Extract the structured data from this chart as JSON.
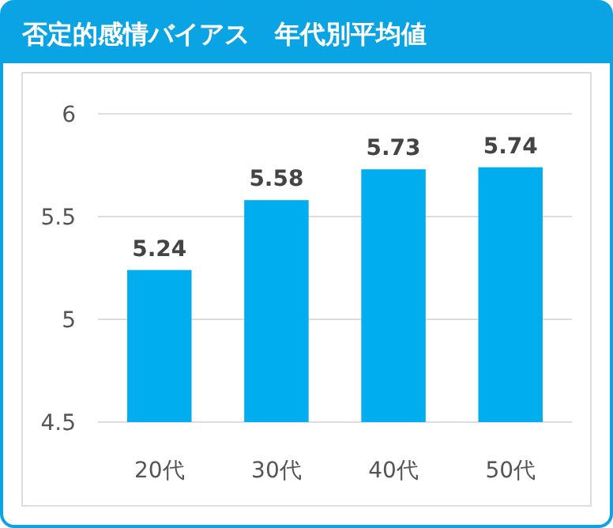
{
  "chart_data": {
    "type": "bar",
    "title": "否定的感情バイアス　年代別平均値",
    "categories": [
      "20代",
      "30代",
      "40代",
      "50代"
    ],
    "values": [
      5.24,
      5.58,
      5.73,
      5.74
    ],
    "color": "#00adef",
    "ylim": [
      4.5,
      6
    ],
    "yticks": [
      4.5,
      5,
      5.5,
      6
    ],
    "grid": "y",
    "data_labels": true
  }
}
